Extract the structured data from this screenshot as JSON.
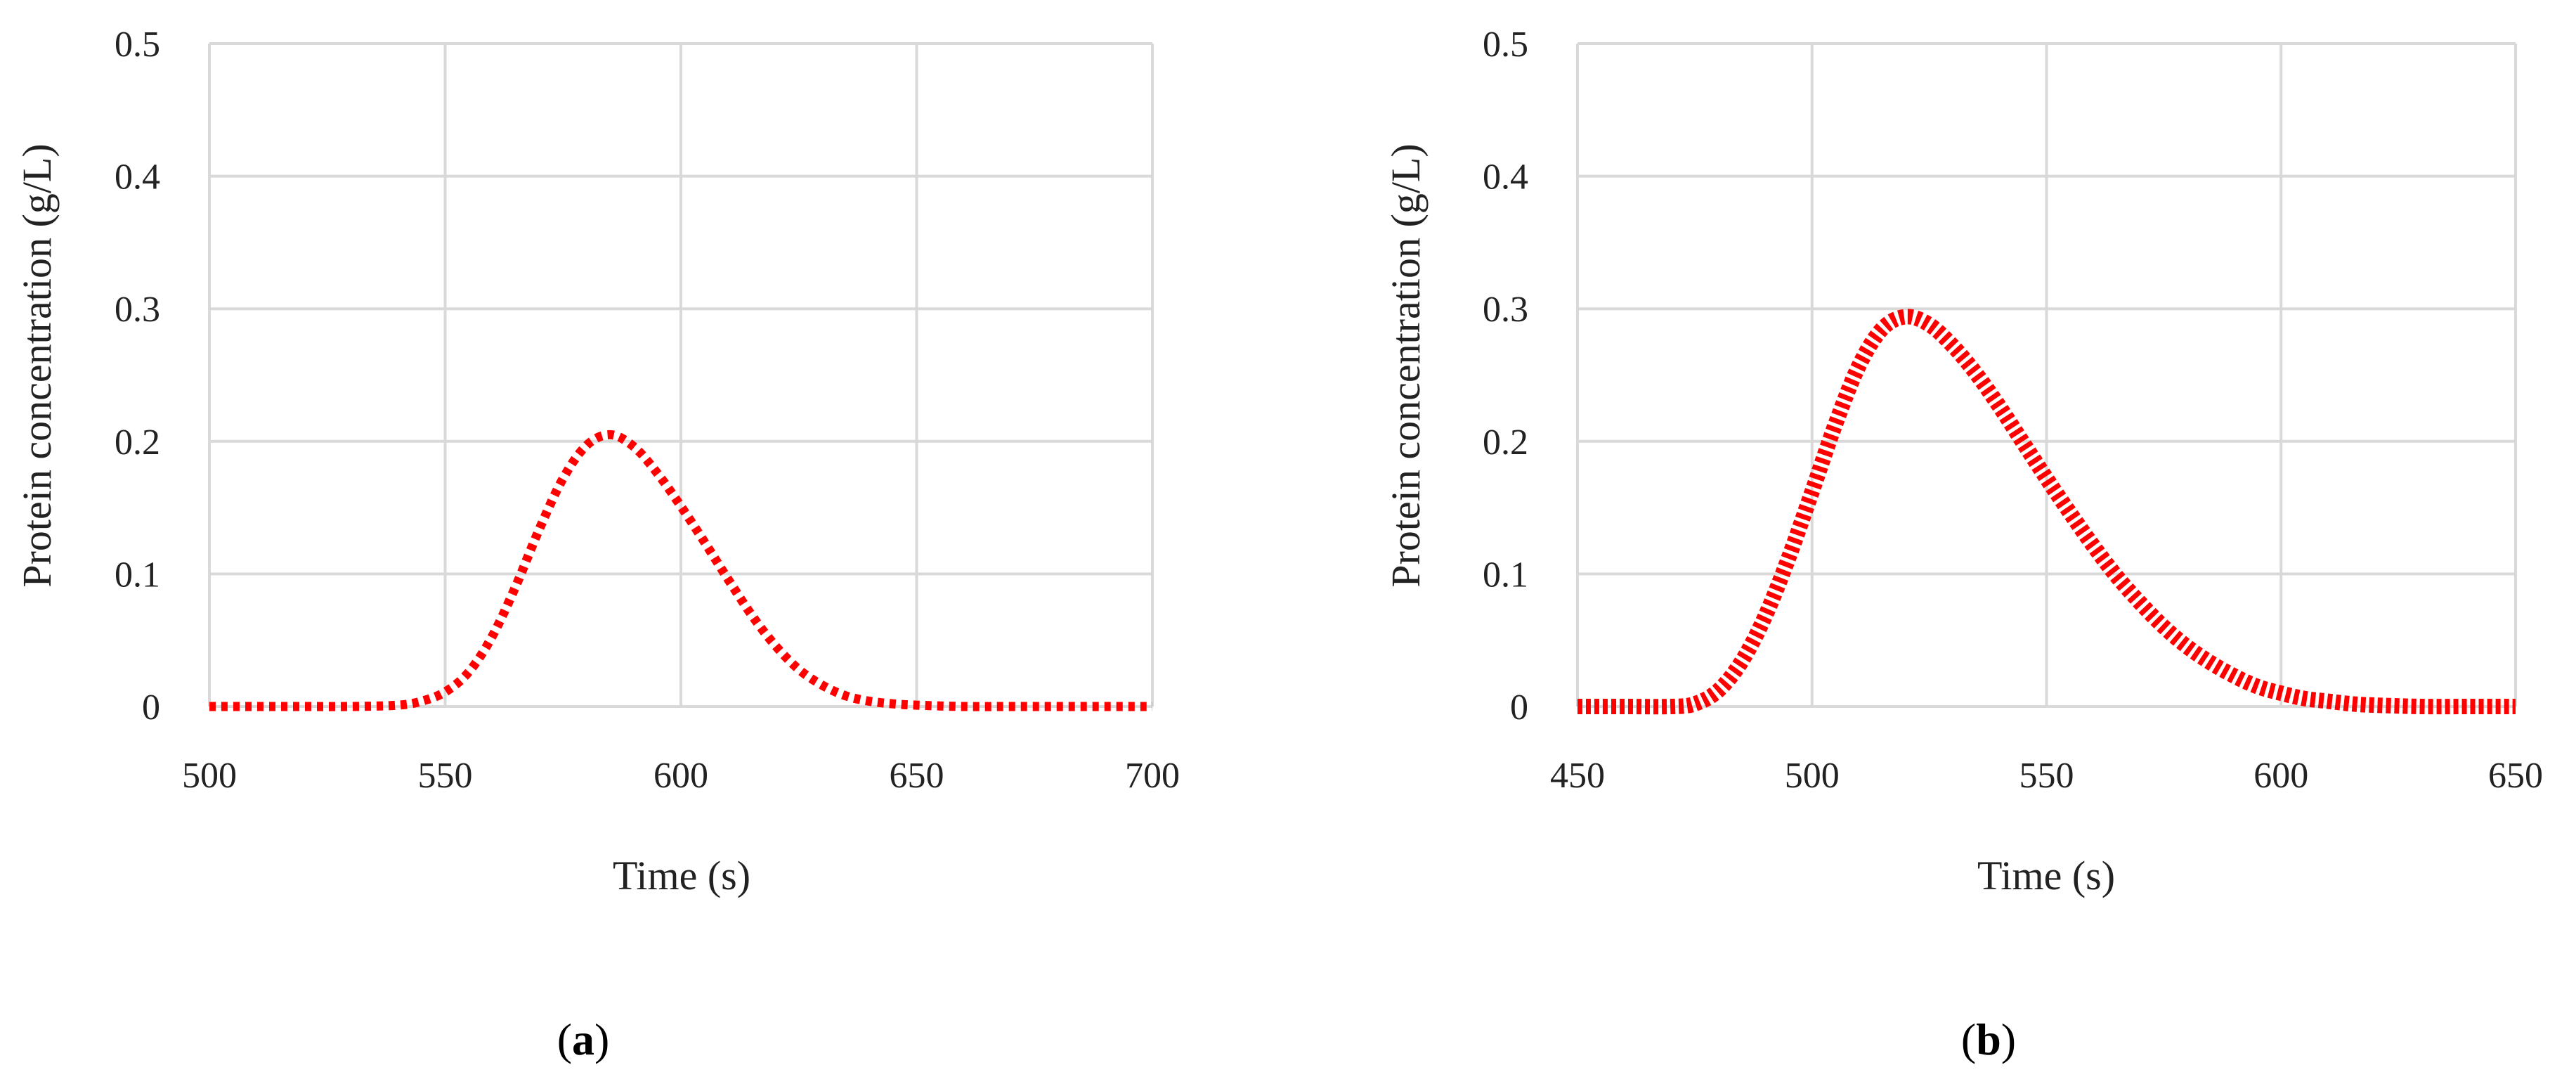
{
  "chart_data": [
    {
      "type": "line",
      "panel_label": "a",
      "xlabel": "Time (s)",
      "ylabel": "Protein concentration (g/L)",
      "xlim": [
        500,
        700
      ],
      "ylim": [
        0,
        0.5
      ],
      "xticks": [
        500,
        550,
        600,
        650,
        700
      ],
      "yticks": [
        0,
        0.1,
        0.2,
        0.3,
        0.4,
        0.5
      ],
      "grid": true,
      "line_style": "dotted",
      "color": "#ff0000",
      "series": [
        {
          "x": [
            500,
            510,
            520,
            530,
            540,
            545,
            550,
            555,
            560,
            565,
            570,
            575,
            580,
            585,
            590,
            595,
            600,
            605,
            610,
            615,
            620,
            625,
            630,
            635,
            640,
            645,
            650,
            660,
            670,
            680,
            690,
            700
          ],
          "y": [
            0,
            0,
            0,
            0,
            0.001,
            0.004,
            0.011,
            0.026,
            0.053,
            0.091,
            0.134,
            0.172,
            0.197,
            0.205,
            0.196,
            0.176,
            0.151,
            0.124,
            0.096,
            0.069,
            0.046,
            0.028,
            0.016,
            0.008,
            0.004,
            0.002,
            0.001,
            0,
            0,
            0,
            0,
            0
          ]
        }
      ]
    },
    {
      "type": "line",
      "panel_label": "b",
      "xlabel": "Time (s)",
      "ylabel": "Protein concentration (g/L)",
      "xlim": [
        450,
        650
      ],
      "ylim": [
        0,
        0.5
      ],
      "xticks": [
        450,
        500,
        550,
        600,
        650
      ],
      "yticks": [
        0,
        0.1,
        0.2,
        0.3,
        0.4,
        0.5
      ],
      "grid": true,
      "line_style": "dotted",
      "color": "#ff0000",
      "series": [
        {
          "x": [
            450,
            460,
            470,
            475,
            480,
            485,
            490,
            495,
            500,
            505,
            510,
            515,
            520,
            525,
            530,
            535,
            540,
            545,
            550,
            555,
            560,
            565,
            570,
            575,
            580,
            585,
            590,
            595,
            600,
            605,
            610,
            615,
            620,
            630,
            640,
            650
          ],
          "y": [
            0,
            0,
            0,
            0.002,
            0.012,
            0.034,
            0.068,
            0.112,
            0.162,
            0.213,
            0.257,
            0.285,
            0.294,
            0.288,
            0.272,
            0.251,
            0.226,
            0.199,
            0.172,
            0.146,
            0.121,
            0.098,
            0.078,
            0.06,
            0.045,
            0.033,
            0.023,
            0.015,
            0.01,
            0.006,
            0.004,
            0.002,
            0.001,
            0,
            0,
            0
          ]
        }
      ]
    }
  ]
}
